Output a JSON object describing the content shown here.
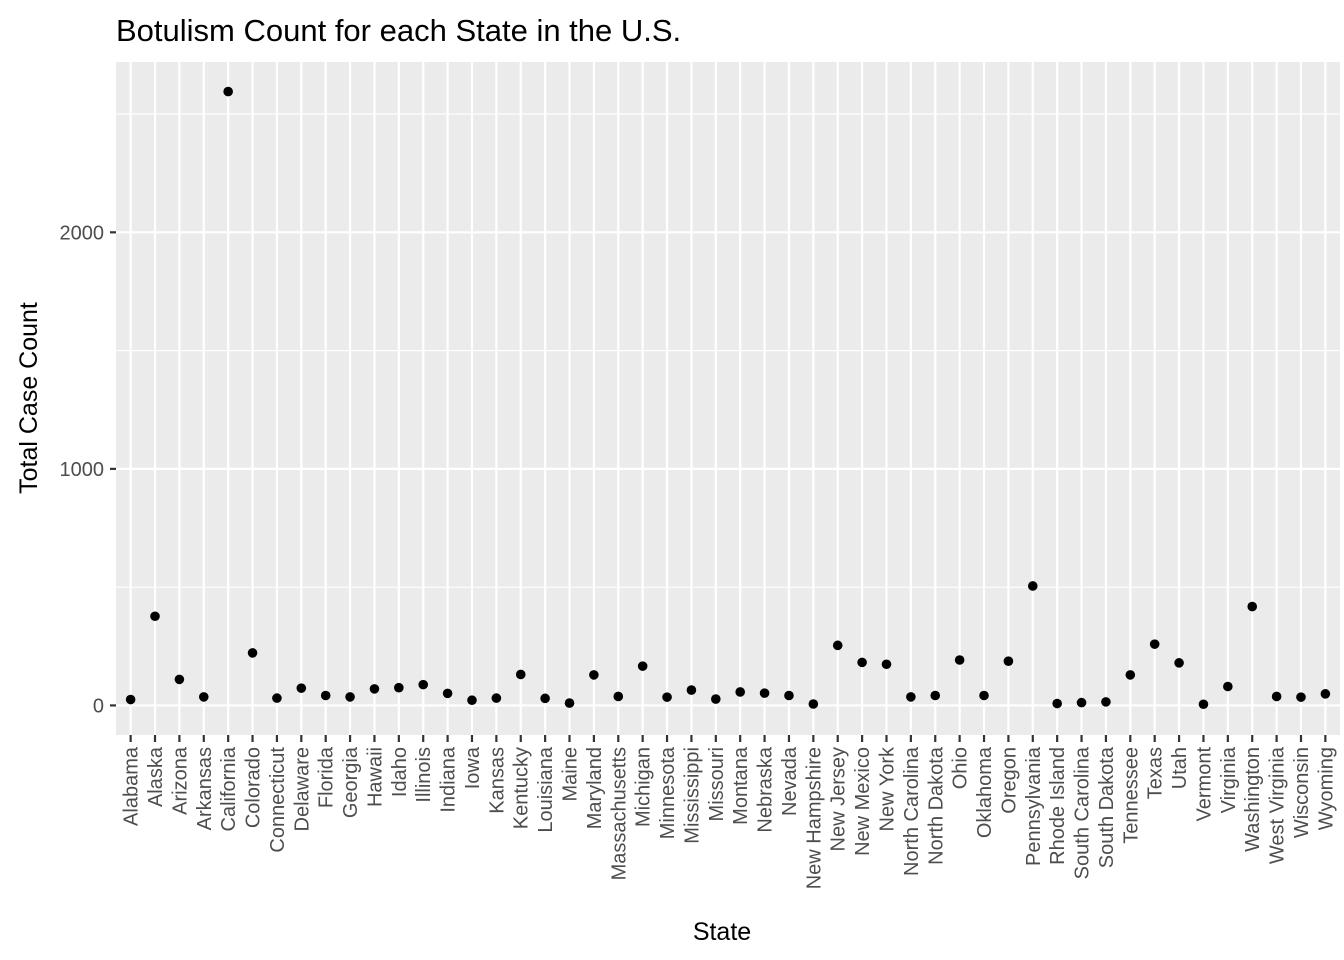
{
  "chart_data": {
    "type": "scatter",
    "title": "Botulism Count for each State in the U.S.",
    "xlabel": "State",
    "ylabel": "Total Case Count",
    "ylim": [
      -125,
      2720
    ],
    "yticks": [
      0,
      1000,
      2000
    ],
    "ytick_labels": [
      "0",
      "1000",
      "2000"
    ],
    "grid": true,
    "categories": [
      "Alabama",
      "Alaska",
      "Arizona",
      "Arkansas",
      "California",
      "Colorado",
      "Connecticut",
      "Delaware",
      "Florida",
      "Georgia",
      "Hawaii",
      "Idaho",
      "Illinois",
      "Indiana",
      "Iowa",
      "Kansas",
      "Kentucky",
      "Louisiana",
      "Maine",
      "Maryland",
      "Massachusetts",
      "Michigan",
      "Minnesota",
      "Mississippi",
      "Missouri",
      "Montana",
      "Nebraska",
      "Nevada",
      "New Hampshire",
      "New Jersey",
      "New Mexico",
      "New York",
      "North Carolina",
      "North Dakota",
      "Ohio",
      "Oklahoma",
      "Oregon",
      "Pennsylvania",
      "Rhode Island",
      "South Carolina",
      "South Dakota",
      "Tennessee",
      "Texas",
      "Utah",
      "Vermont",
      "Virginia",
      "Washington",
      "West Virginia",
      "Wisconsin",
      "Wyoming"
    ],
    "values": [
      25,
      377,
      110,
      36,
      2595,
      222,
      31,
      73,
      42,
      36,
      70,
      75,
      88,
      51,
      22,
      31,
      131,
      30,
      10,
      129,
      38,
      166,
      35,
      65,
      27,
      57,
      52,
      42,
      6,
      254,
      182,
      174,
      36,
      42,
      192,
      42,
      187,
      505,
      8,
      12,
      15,
      129,
      259,
      180,
      5,
      80,
      418,
      38,
      35,
      49
    ],
    "point_color": "#000000",
    "panel_color": "#ebebeb",
    "grid_color": "#ffffff"
  }
}
